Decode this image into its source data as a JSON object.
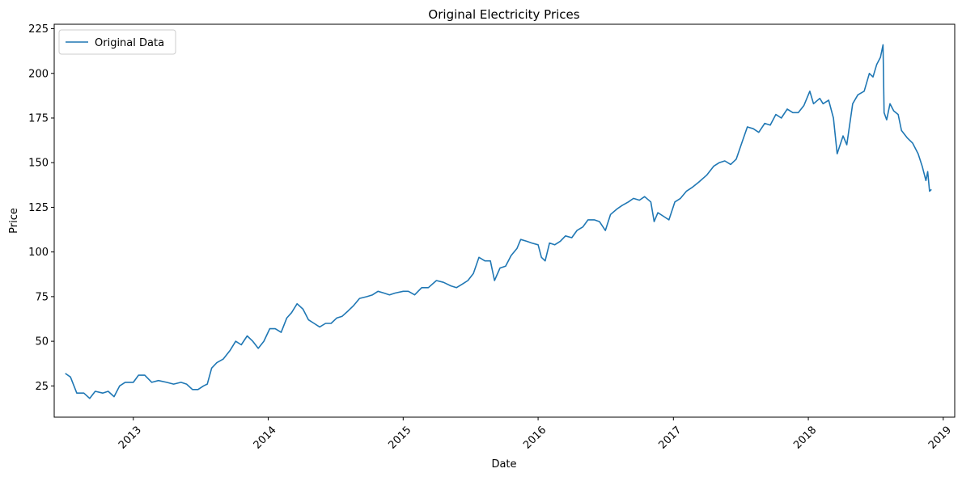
{
  "chart_data": {
    "type": "line",
    "title": "Original Electricity Prices",
    "xlabel": "Date",
    "ylabel": "Price",
    "xlim": [
      "2012-06-01",
      "2019-02-01"
    ],
    "ylim": [
      7.5,
      227.5
    ],
    "xticks": [
      "2013",
      "2014",
      "2015",
      "2016",
      "2017",
      "2018",
      "2019"
    ],
    "yticks": [
      25,
      50,
      75,
      100,
      125,
      150,
      175,
      200,
      225
    ],
    "grid": false,
    "legend": "upper left",
    "line_color": "#1f77b4",
    "series": [
      {
        "name": "Original Data",
        "points": [
          [
            "2012-07-01",
            32
          ],
          [
            "2012-07-15",
            30
          ],
          [
            "2012-08-01",
            21
          ],
          [
            "2012-08-20",
            21
          ],
          [
            "2012-09-05",
            18
          ],
          [
            "2012-09-20",
            22
          ],
          [
            "2012-10-10",
            21
          ],
          [
            "2012-10-25",
            22
          ],
          [
            "2012-11-10",
            19
          ],
          [
            "2012-11-25",
            25
          ],
          [
            "2012-12-10",
            27
          ],
          [
            "2013-01-01",
            27
          ],
          [
            "2013-01-15",
            31
          ],
          [
            "2013-02-01",
            31
          ],
          [
            "2013-02-20",
            27
          ],
          [
            "2013-03-10",
            28
          ],
          [
            "2013-04-01",
            27
          ],
          [
            "2013-04-20",
            26
          ],
          [
            "2013-05-10",
            27
          ],
          [
            "2013-05-25",
            26
          ],
          [
            "2013-06-10",
            23
          ],
          [
            "2013-06-25",
            23
          ],
          [
            "2013-07-10",
            25
          ],
          [
            "2013-07-20",
            26
          ],
          [
            "2013-08-01",
            35
          ],
          [
            "2013-08-15",
            38
          ],
          [
            "2013-09-01",
            40
          ],
          [
            "2013-09-20",
            45
          ],
          [
            "2013-10-05",
            50
          ],
          [
            "2013-10-20",
            48
          ],
          [
            "2013-11-05",
            53
          ],
          [
            "2013-11-20",
            50
          ],
          [
            "2013-12-05",
            46
          ],
          [
            "2013-12-20",
            50
          ],
          [
            "2014-01-05",
            57
          ],
          [
            "2014-01-20",
            57
          ],
          [
            "2014-02-05",
            55
          ],
          [
            "2014-02-20",
            63
          ],
          [
            "2014-03-05",
            66
          ],
          [
            "2014-03-20",
            71
          ],
          [
            "2014-04-05",
            68
          ],
          [
            "2014-04-20",
            62
          ],
          [
            "2014-05-05",
            60
          ],
          [
            "2014-05-20",
            58
          ],
          [
            "2014-06-05",
            60
          ],
          [
            "2014-06-20",
            60
          ],
          [
            "2014-07-05",
            63
          ],
          [
            "2014-07-20",
            64
          ],
          [
            "2014-08-05",
            67
          ],
          [
            "2014-08-20",
            70
          ],
          [
            "2014-09-05",
            74
          ],
          [
            "2014-09-25",
            75
          ],
          [
            "2014-10-10",
            76
          ],
          [
            "2014-10-25",
            78
          ],
          [
            "2014-11-10",
            77
          ],
          [
            "2014-11-25",
            76
          ],
          [
            "2014-12-10",
            77
          ],
          [
            "2015-01-01",
            78
          ],
          [
            "2015-01-15",
            78
          ],
          [
            "2015-02-01",
            76
          ],
          [
            "2015-02-20",
            80
          ],
          [
            "2015-03-10",
            80
          ],
          [
            "2015-04-01",
            84
          ],
          [
            "2015-04-20",
            83
          ],
          [
            "2015-05-10",
            81
          ],
          [
            "2015-05-25",
            80
          ],
          [
            "2015-06-10",
            82
          ],
          [
            "2015-06-25",
            84
          ],
          [
            "2015-07-10",
            88
          ],
          [
            "2015-07-25",
            97
          ],
          [
            "2015-08-10",
            95
          ],
          [
            "2015-08-25",
            95
          ],
          [
            "2015-09-05",
            84
          ],
          [
            "2015-09-20",
            91
          ],
          [
            "2015-10-05",
            92
          ],
          [
            "2015-10-20",
            98
          ],
          [
            "2015-11-05",
            102
          ],
          [
            "2015-11-15",
            107
          ],
          [
            "2015-12-01",
            106
          ],
          [
            "2015-12-15",
            105
          ],
          [
            "2016-01-01",
            104
          ],
          [
            "2016-01-10",
            97
          ],
          [
            "2016-01-20",
            95
          ],
          [
            "2016-02-01",
            105
          ],
          [
            "2016-02-15",
            104
          ],
          [
            "2016-03-01",
            106
          ],
          [
            "2016-03-15",
            109
          ],
          [
            "2016-04-01",
            108
          ],
          [
            "2016-04-15",
            112
          ],
          [
            "2016-05-01",
            114
          ],
          [
            "2016-05-15",
            118
          ],
          [
            "2016-06-01",
            118
          ],
          [
            "2016-06-15",
            117
          ],
          [
            "2016-07-01",
            112
          ],
          [
            "2016-07-15",
            121
          ],
          [
            "2016-08-01",
            124
          ],
          [
            "2016-08-15",
            126
          ],
          [
            "2016-09-01",
            128
          ],
          [
            "2016-09-15",
            130
          ],
          [
            "2016-10-01",
            129
          ],
          [
            "2016-10-15",
            131
          ],
          [
            "2016-11-01",
            128
          ],
          [
            "2016-11-10",
            117
          ],
          [
            "2016-11-20",
            122
          ],
          [
            "2016-12-05",
            120
          ],
          [
            "2016-12-20",
            118
          ],
          [
            "2017-01-05",
            128
          ],
          [
            "2017-01-20",
            130
          ],
          [
            "2017-02-05",
            134
          ],
          [
            "2017-02-20",
            136
          ],
          [
            "2017-03-10",
            139
          ],
          [
            "2017-04-01",
            143
          ],
          [
            "2017-04-20",
            148
          ],
          [
            "2017-05-05",
            150
          ],
          [
            "2017-05-20",
            151
          ],
          [
            "2017-06-05",
            149
          ],
          [
            "2017-06-20",
            152
          ],
          [
            "2017-07-05",
            161
          ],
          [
            "2017-07-20",
            170
          ],
          [
            "2017-08-05",
            169
          ],
          [
            "2017-08-20",
            167
          ],
          [
            "2017-09-05",
            172
          ],
          [
            "2017-09-20",
            171
          ],
          [
            "2017-10-05",
            177
          ],
          [
            "2017-10-20",
            175
          ],
          [
            "2017-11-05",
            180
          ],
          [
            "2017-11-20",
            178
          ],
          [
            "2017-12-05",
            178
          ],
          [
            "2017-12-20",
            182
          ],
          [
            "2018-01-05",
            190
          ],
          [
            "2018-01-15",
            183
          ],
          [
            "2018-02-01",
            186
          ],
          [
            "2018-02-10",
            183
          ],
          [
            "2018-02-25",
            185
          ],
          [
            "2018-03-10",
            175
          ],
          [
            "2018-03-20",
            155
          ],
          [
            "2018-04-05",
            165
          ],
          [
            "2018-04-15",
            160
          ],
          [
            "2018-05-01",
            183
          ],
          [
            "2018-05-15",
            188
          ],
          [
            "2018-06-01",
            190
          ],
          [
            "2018-06-15",
            200
          ],
          [
            "2018-06-25",
            198
          ],
          [
            "2018-07-05",
            205
          ],
          [
            "2018-07-15",
            209
          ],
          [
            "2018-07-22",
            216
          ],
          [
            "2018-07-25",
            178
          ],
          [
            "2018-08-01",
            174
          ],
          [
            "2018-08-10",
            183
          ],
          [
            "2018-08-20",
            179
          ],
          [
            "2018-09-01",
            177
          ],
          [
            "2018-09-10",
            168
          ],
          [
            "2018-09-25",
            164
          ],
          [
            "2018-10-10",
            161
          ],
          [
            "2018-10-25",
            155
          ],
          [
            "2018-11-05",
            148
          ],
          [
            "2018-11-15",
            140
          ],
          [
            "2018-11-20",
            145
          ],
          [
            "2018-11-25",
            134
          ],
          [
            "2018-11-30",
            135
          ]
        ]
      }
    ]
  }
}
